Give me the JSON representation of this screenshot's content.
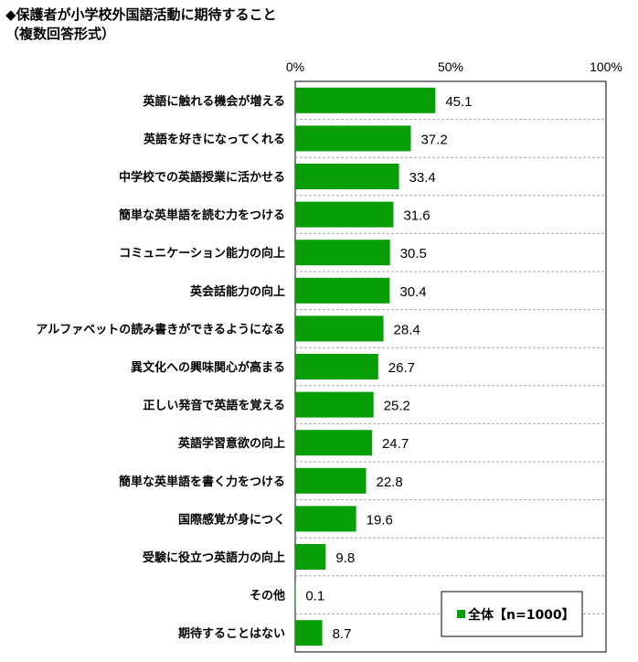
{
  "title": "◆保護者が小学校外国語活動に期待すること",
  "subtitle": "（複数回答形式）",
  "chart_data": {
    "type": "bar",
    "orientation": "horizontal",
    "categories": [
      "英語に触れる機会が増える",
      "英語を好きになってくれる",
      "中学校での英語授業に活かせる",
      "簡単な英単語を読む力をつける",
      "コミュニケーション能力の向上",
      "英会話能力の向上",
      "アルファベットの読み書きができるようになる",
      "異文化への興味関心が高まる",
      "正しい発音で英語を覚える",
      "英語学習意欲の向上",
      "簡単な英単語を書く力をつける",
      "国際感覚が身につく",
      "受験に役立つ英語力の向上",
      "その他",
      "期待することはない"
    ],
    "series": [
      {
        "name": "全体【n=1000】",
        "values": [
          45.1,
          37.2,
          33.4,
          31.6,
          30.5,
          30.4,
          28.4,
          26.7,
          25.2,
          24.7,
          22.8,
          19.6,
          9.8,
          0.1,
          8.7
        ]
      }
    ],
    "value_labels": [
      "45.1",
      "37.2",
      "33.4",
      "31.6",
      "30.5",
      "30.4",
      "28.4",
      "26.7",
      "25.2",
      "24.7",
      "22.8",
      "19.6",
      "9.8",
      "0.1",
      "8.7"
    ],
    "xlim": [
      0,
      100
    ],
    "xticks": [
      "0%",
      "50%",
      "100%"
    ],
    "grid": "horizontal dashed separators between categories",
    "legend_position": "bottom-right inside plot",
    "colors": {
      "bar": "#079e07",
      "grid": "#aaaaaa",
      "axis": "#000000"
    }
  }
}
